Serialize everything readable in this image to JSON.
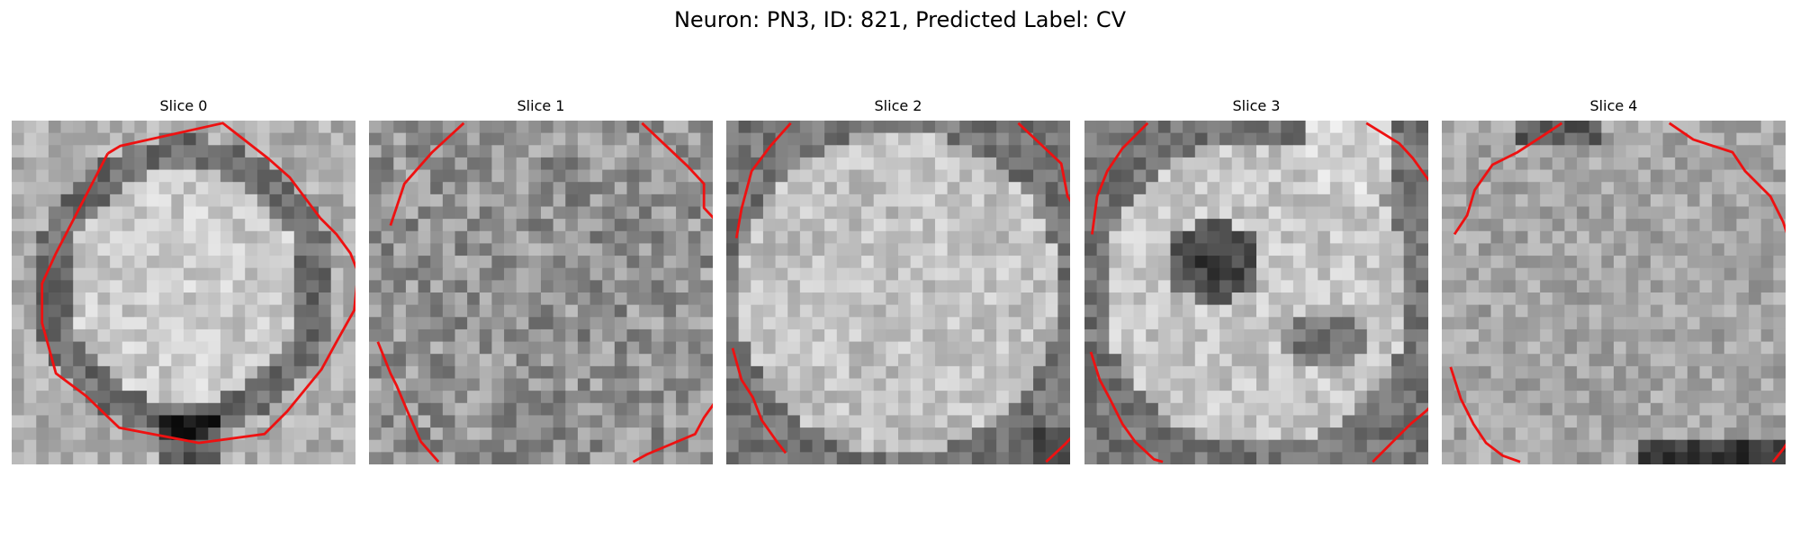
{
  "figure": {
    "title": "Neuron: PN3, ID: 821, Predicted Label: CV",
    "contour_color": "#ee1111"
  },
  "panels": [
    {
      "title": "Slice 0",
      "appearance": "bright round cell body with dark ring border, fully enclosed by red contour",
      "contour_segments": [
        [
          [
            76,
            26
          ],
          [
            86,
            20
          ],
          [
            167,
            2
          ],
          [
            203,
            30
          ],
          [
            220,
            45
          ],
          [
            232,
            61
          ],
          [
            244,
            77
          ],
          [
            257,
            90
          ],
          [
            268,
            105
          ],
          [
            274,
            120
          ],
          [
            271,
            150
          ],
          [
            257,
            175
          ],
          [
            245,
            197
          ],
          [
            218,
            230
          ],
          [
            200,
            248
          ],
          [
            148,
            255
          ],
          [
            85,
            243
          ],
          [
            59,
            218
          ],
          [
            35,
            200
          ],
          [
            24,
            160
          ],
          [
            24,
            129
          ],
          [
            35,
            105
          ],
          [
            76,
            26
          ]
        ]
      ]
    },
    {
      "title": "Slice 1",
      "appearance": "speckled gray texture, contour arcs visible at four corners",
      "contour_segments": [
        [
          [
            75,
            2
          ],
          [
            50,
            25
          ],
          [
            28,
            50
          ],
          [
            17,
            83
          ]
        ],
        [
          [
            216,
            2
          ],
          [
            252,
            36
          ],
          [
            265,
            50
          ],
          [
            265,
            69
          ],
          [
            278,
            83
          ],
          [
            284,
            90
          ]
        ],
        [
          [
            7,
            175
          ],
          [
            17,
            200
          ],
          [
            22,
            210
          ],
          [
            30,
            229
          ],
          [
            41,
            254
          ],
          [
            55,
            270
          ]
        ],
        [
          [
            209,
            270
          ],
          [
            220,
            264
          ],
          [
            258,
            248
          ],
          [
            265,
            235
          ],
          [
            275,
            221
          ],
          [
            287,
            200
          ]
        ]
      ]
    },
    {
      "title": "Slice 2",
      "appearance": "bright textured disc with darker rim, contour arcs on left and right edges",
      "contour_segments": [
        [
          [
            51,
            2
          ],
          [
            35,
            20
          ],
          [
            20,
            40
          ],
          [
            12,
            70
          ],
          [
            8,
            93
          ]
        ],
        [
          [
            231,
            2
          ],
          [
            265,
            34
          ],
          [
            270,
            60
          ],
          [
            280,
            75
          ],
          [
            289,
            95
          ]
        ],
        [
          [
            5,
            180
          ],
          [
            12,
            205
          ],
          [
            21,
            219
          ],
          [
            28,
            237
          ],
          [
            40,
            254
          ],
          [
            47,
            263
          ]
        ],
        [
          [
            253,
            270
          ],
          [
            268,
            256
          ],
          [
            282,
            241
          ],
          [
            287,
            225
          ],
          [
            289,
            210
          ]
        ]
      ]
    },
    {
      "title": "Slice 3",
      "appearance": "bright background with dark blotch near center-left and smaller dark area lower-right, contour arcs at corners",
      "contour_segments": [
        [
          [
            50,
            2
          ],
          [
            30,
            22
          ],
          [
            18,
            40
          ],
          [
            10,
            60
          ],
          [
            6,
            90
          ]
        ],
        [
          [
            223,
            2
          ],
          [
            249,
            18
          ],
          [
            260,
            30
          ],
          [
            270,
            44
          ],
          [
            282,
            60
          ],
          [
            283,
            85
          ],
          [
            290,
            95
          ]
        ],
        [
          [
            5,
            183
          ],
          [
            12,
            205
          ],
          [
            20,
            220
          ],
          [
            30,
            240
          ],
          [
            40,
            254
          ],
          [
            55,
            268
          ],
          [
            62,
            270
          ]
        ],
        [
          [
            228,
            270
          ],
          [
            258,
            240
          ],
          [
            270,
            230
          ],
          [
            285,
            215
          ],
          [
            290,
            195
          ]
        ]
      ]
    },
    {
      "title": "Slice 4",
      "appearance": "speckled gray texture with dark band at bottom, contour forms left arc and long right edge",
      "contour_segments": [
        [
          [
            95,
            2
          ],
          [
            80,
            12
          ],
          [
            60,
            25
          ],
          [
            40,
            35
          ],
          [
            26,
            55
          ],
          [
            20,
            75
          ],
          [
            10,
            90
          ]
        ],
        [
          [
            180,
            2
          ],
          [
            199,
            15
          ],
          [
            230,
            25
          ],
          [
            240,
            40
          ],
          [
            260,
            60
          ],
          [
            270,
            80
          ],
          [
            280,
            110
          ],
          [
            283,
            150
          ],
          [
            285,
            190
          ],
          [
            283,
            240
          ],
          [
            270,
            260
          ],
          [
            262,
            270
          ]
        ],
        [
          [
            7,
            195
          ],
          [
            15,
            220
          ],
          [
            25,
            240
          ],
          [
            35,
            255
          ],
          [
            48,
            265
          ],
          [
            62,
            270
          ]
        ]
      ]
    }
  ]
}
